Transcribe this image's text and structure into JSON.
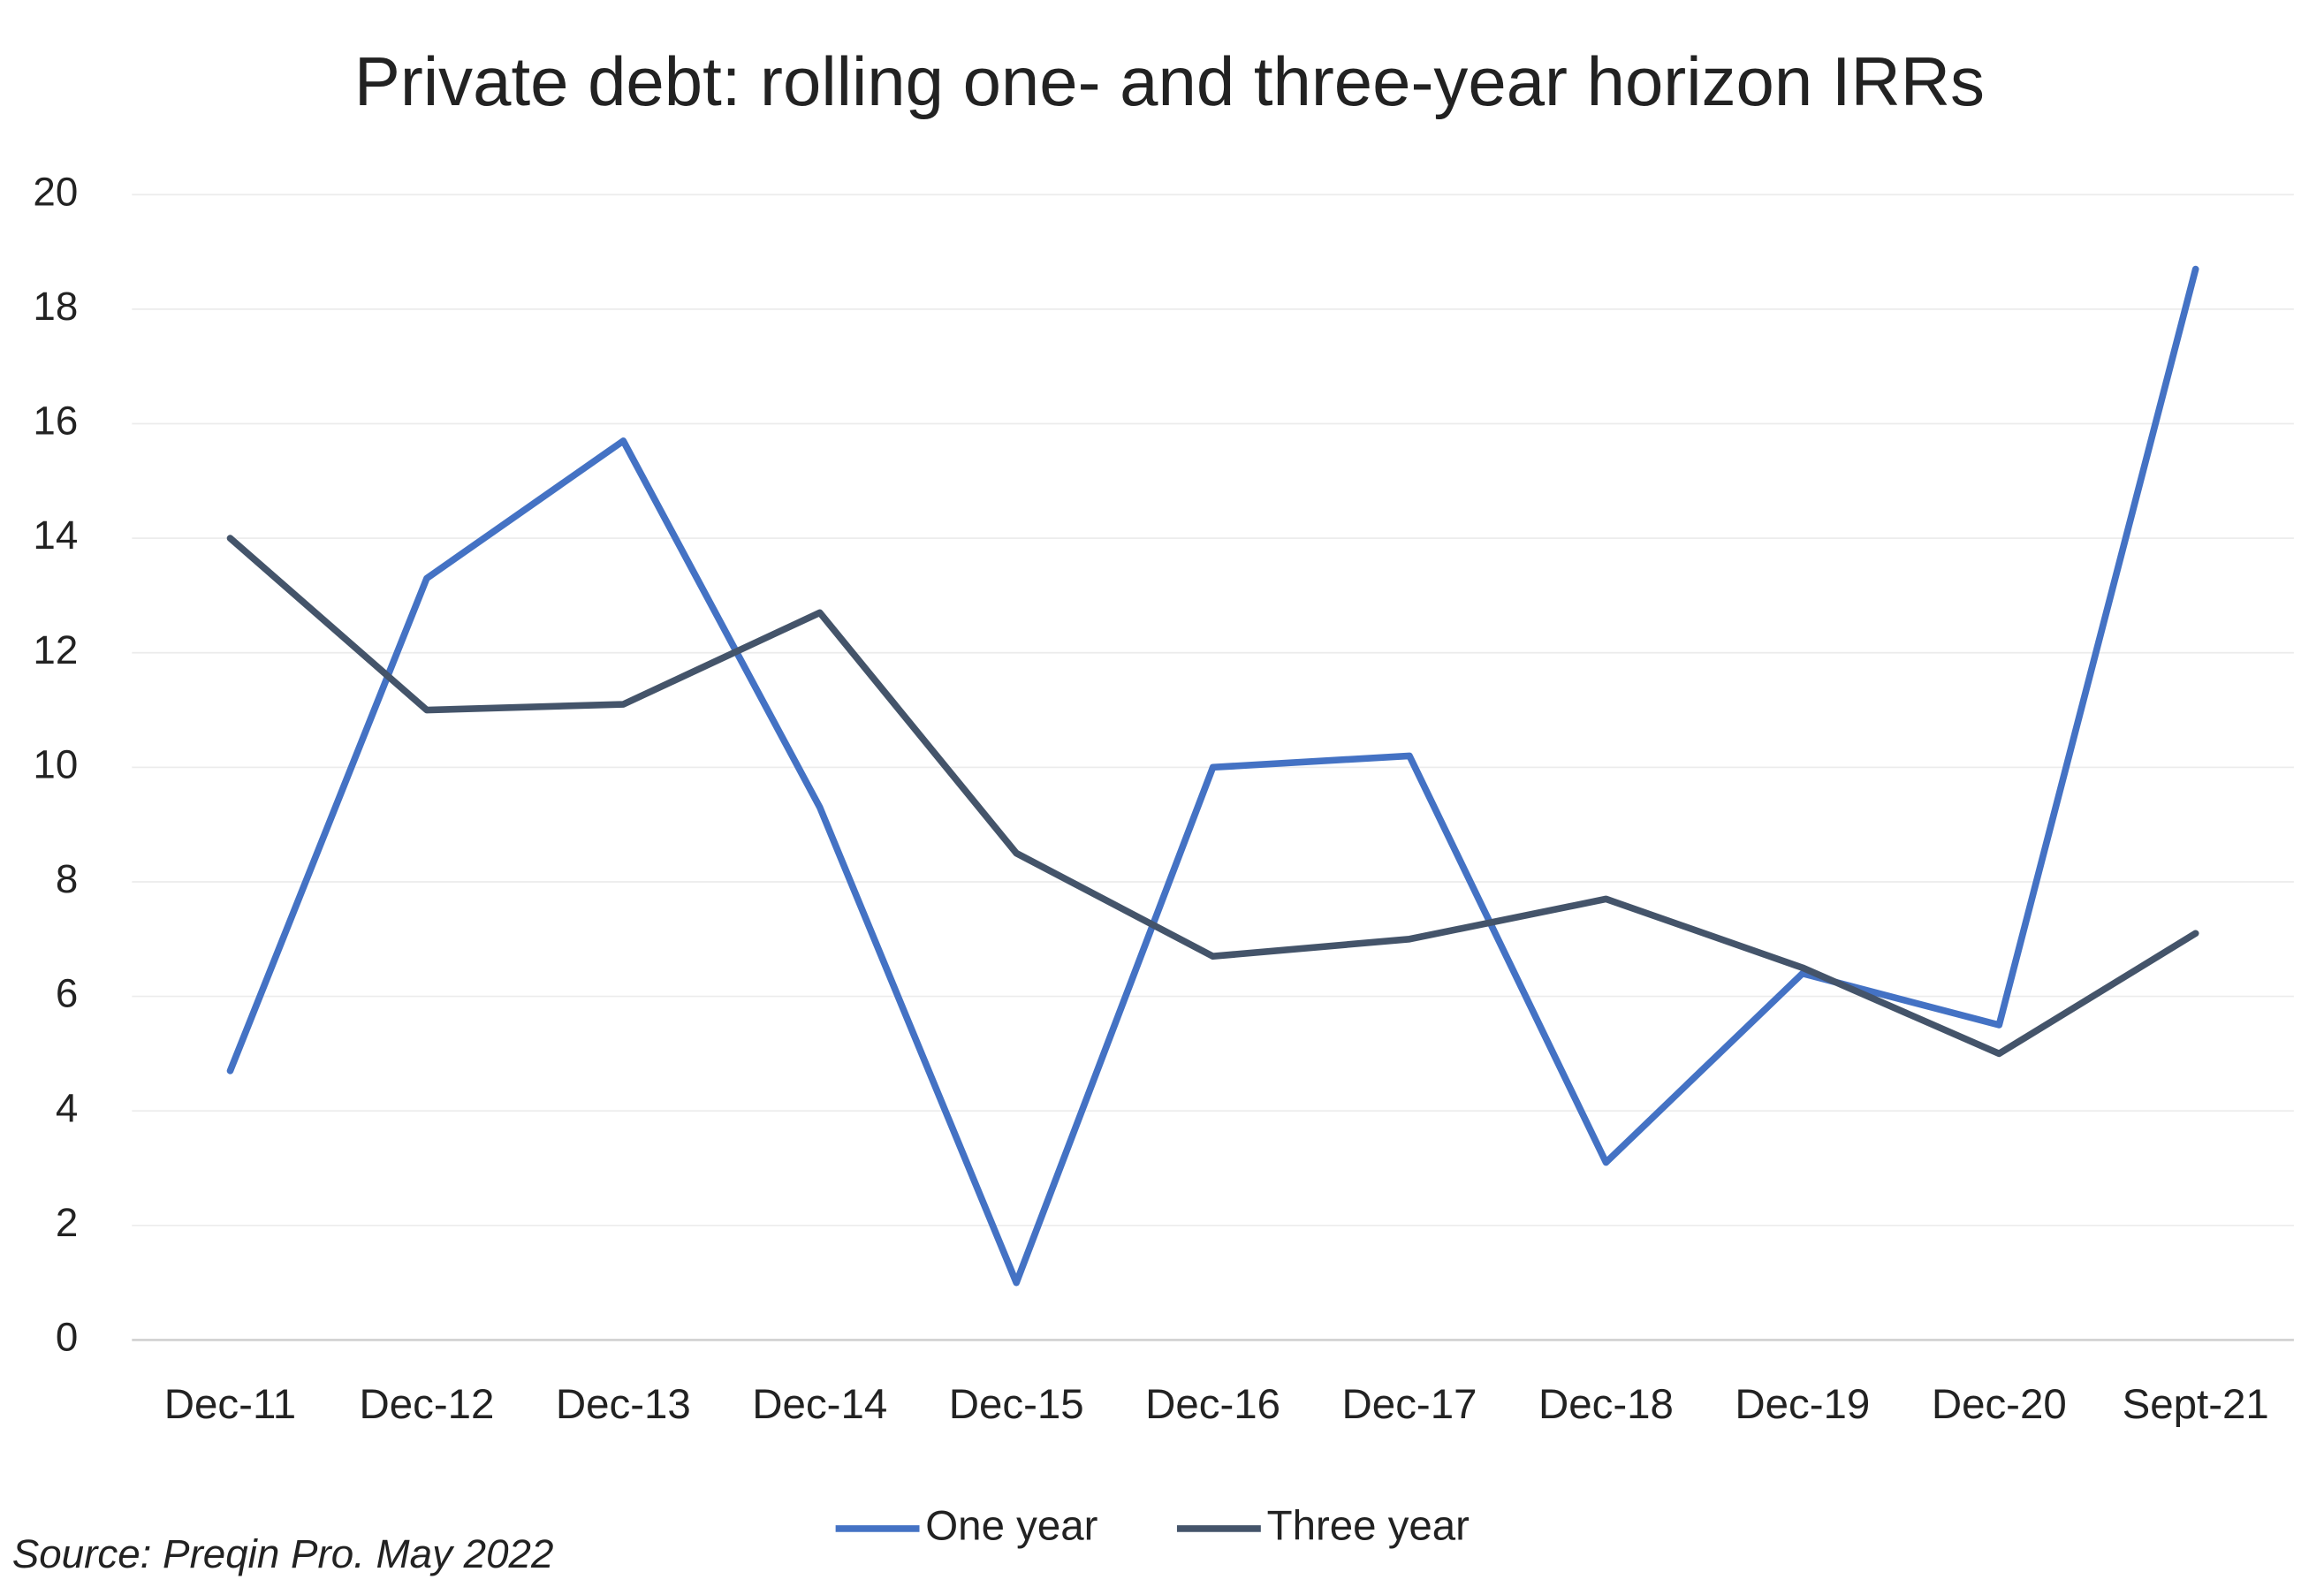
{
  "chart_data": {
    "type": "line",
    "title": "Private debt: rolling one- and three-year horizon IRRs",
    "source": "Source: Preqin Pro. May 2022",
    "categories": [
      "Dec-11",
      "Dec-12",
      "Dec-13",
      "Dec-14",
      "Dec-15",
      "Dec-16",
      "Dec-17",
      "Dec-18",
      "Dec-19",
      "Dec-20",
      "Sept-21"
    ],
    "series": [
      {
        "name": "One year",
        "color": "#4472c4",
        "values": [
          4.7,
          13.3,
          15.7,
          9.3,
          1.0,
          10.0,
          10.2,
          3.1,
          6.4,
          5.5,
          18.7
        ]
      },
      {
        "name": "Three year",
        "color": "#44546a",
        "values": [
          14.0,
          11.0,
          11.1,
          12.7,
          8.5,
          6.7,
          7.0,
          7.7,
          6.5,
          5.0,
          7.1
        ]
      }
    ],
    "ylim": [
      0,
      20
    ],
    "yticks": [
      0,
      2,
      4,
      6,
      8,
      10,
      12,
      14,
      16,
      18,
      20
    ],
    "grid": true,
    "legend": "bottom"
  }
}
